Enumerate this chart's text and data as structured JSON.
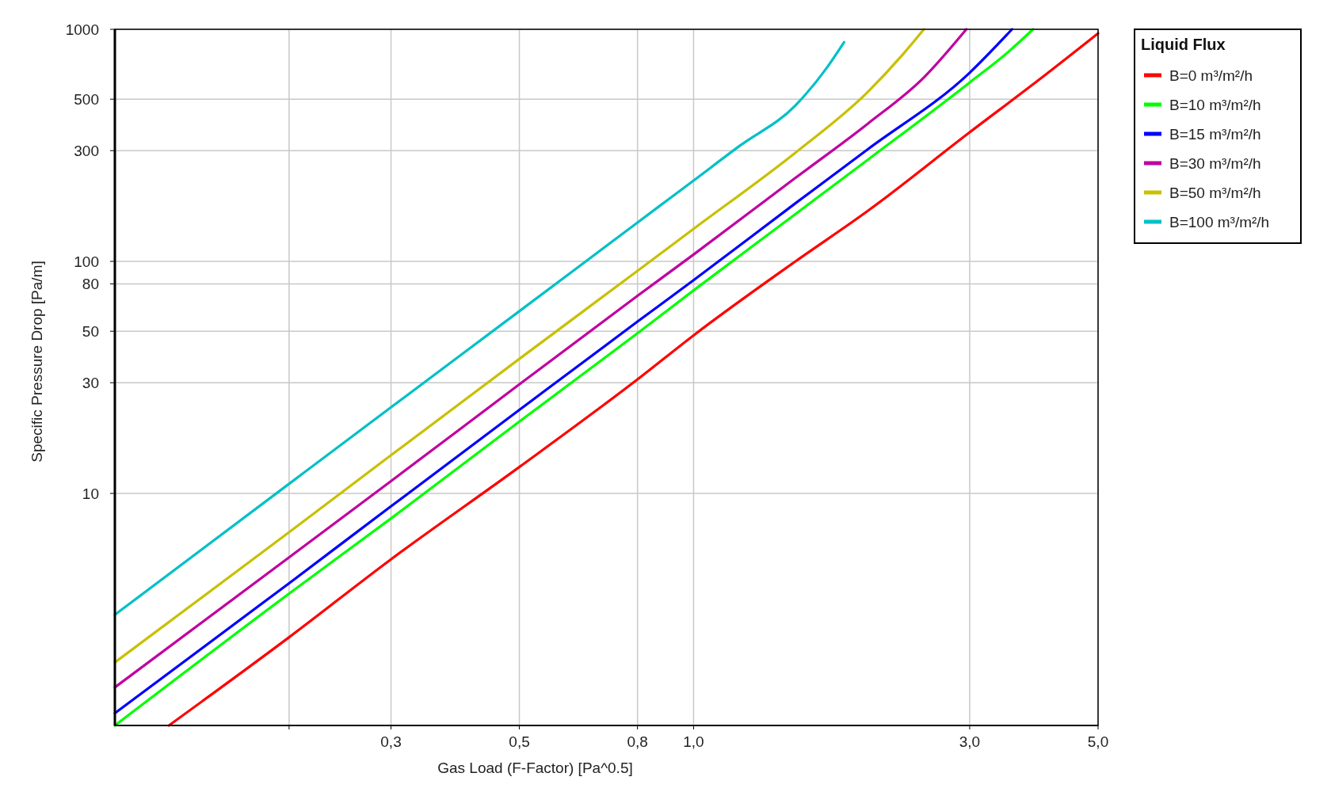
{
  "chart_data": {
    "type": "line",
    "xlabel": "Gas Load (F-Factor) [Pa^0.5]",
    "ylabel": "Specific Pressure Drop [Pa/m]",
    "legend_title": "Liquid Flux",
    "log": "xy",
    "grid": true,
    "legend": "top right",
    "marker": "none",
    "line_style": "solid",
    "xlim": [
      0.1,
      5
    ],
    "ylim": [
      1,
      1000
    ],
    "xticks": [
      {
        "value": 0.2,
        "label": null
      },
      {
        "value": 0.3,
        "label": "0,3"
      },
      {
        "value": 0.5,
        "label": "0,5"
      },
      {
        "value": 0.8,
        "label": "0,8"
      },
      {
        "value": 1,
        "label": "1,0"
      },
      {
        "value": 3,
        "label": "3,0"
      },
      {
        "value": 5,
        "label": "5,0"
      }
    ],
    "yticks": [
      10,
      30,
      50,
      80,
      100,
      300,
      500,
      1000
    ],
    "series": [
      {
        "name": "B=0 m³/m²/h",
        "color": "#ff0000",
        "x": [
          0.124,
          0.2,
          0.3,
          0.5,
          0.8,
          1.0,
          1.5,
          2.0,
          3.0,
          4.0,
          5.0
        ],
        "values": [
          1,
          2.4,
          5.2,
          13,
          31,
          48,
          100,
          165,
          360,
          620,
          960
        ]
      },
      {
        "name": "B=10 m³/m²/h",
        "color": "#00ff00",
        "x": [
          0.1,
          0.2,
          0.3,
          0.5,
          0.8,
          1.0,
          1.5,
          2.0,
          3.0,
          3.5,
          3.86
        ],
        "values": [
          1,
          3.7,
          7.8,
          20.4,
          49,
          75,
          160,
          274,
          590,
          800,
          1000
        ]
      },
      {
        "name": "B=15 m³/m²/h",
        "color": "#0000ff",
        "x": [
          0.1,
          0.2,
          0.3,
          0.5,
          0.8,
          1.0,
          1.5,
          2.0,
          3.0,
          3.55
        ],
        "values": [
          1.13,
          4.1,
          8.8,
          22.9,
          55,
          83,
          178,
          304,
          650,
          1000
        ]
      },
      {
        "name": "B=30 m³/m²/h",
        "color": "#c000a0",
        "x": [
          0.1,
          0.2,
          0.3,
          0.5,
          0.8,
          1.0,
          1.5,
          2.0,
          2.5,
          2.96
        ],
        "values": [
          1.46,
          5.3,
          11.3,
          29.5,
          71,
          107,
          229,
          392,
          620,
          1000
        ]
      },
      {
        "name": "B=50 m³/m²/h",
        "color": "#c8c000",
        "x": [
          0.1,
          0.2,
          0.3,
          0.5,
          0.8,
          1.0,
          1.5,
          2.0,
          2.3,
          2.5
        ],
        "values": [
          1.87,
          6.8,
          14.6,
          38,
          91,
          138,
          294,
          537,
          780,
          1000
        ]
      },
      {
        "name": "B=100 m³/m²/h",
        "color": "#00c0c8",
        "x": [
          0.1,
          0.2,
          0.3,
          0.5,
          0.8,
          1.0,
          1.2,
          1.5,
          1.7,
          1.82
        ],
        "values": [
          3.0,
          11,
          23.5,
          61,
          147,
          223,
          314,
          470,
          684,
          880
        ]
      }
    ]
  }
}
